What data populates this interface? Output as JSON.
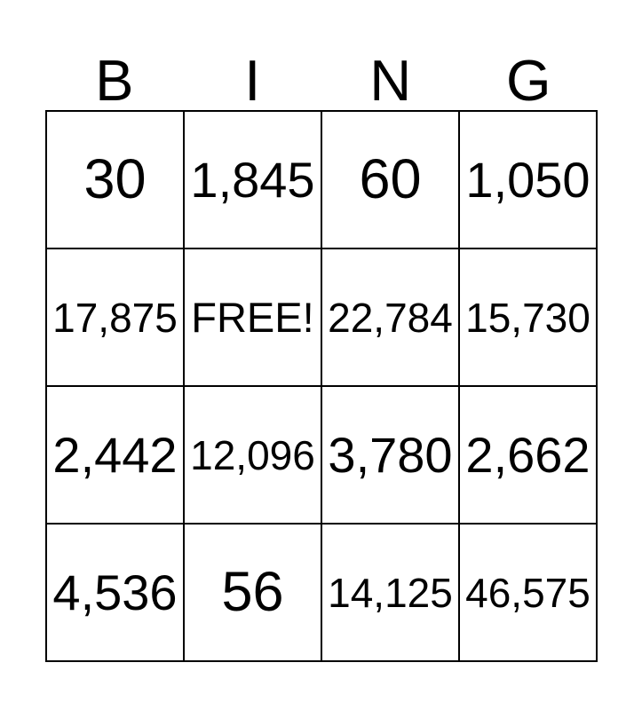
{
  "card": {
    "header_letters": [
      "B",
      "I",
      "N",
      "G"
    ],
    "rows": [
      [
        "30",
        "1,845",
        "60",
        "1,050"
      ],
      [
        "17,875",
        "FREE!",
        "22,784",
        "15,730"
      ],
      [
        "2,442",
        "12,096",
        "3,780",
        "2,662"
      ],
      [
        "4,536",
        "56",
        "14,125",
        "46,575"
      ]
    ],
    "free_cell": {
      "row": 1,
      "col": 1,
      "label": "FREE!"
    },
    "colors": {
      "text": "#000000",
      "border": "#000000",
      "background": "#ffffff"
    }
  }
}
